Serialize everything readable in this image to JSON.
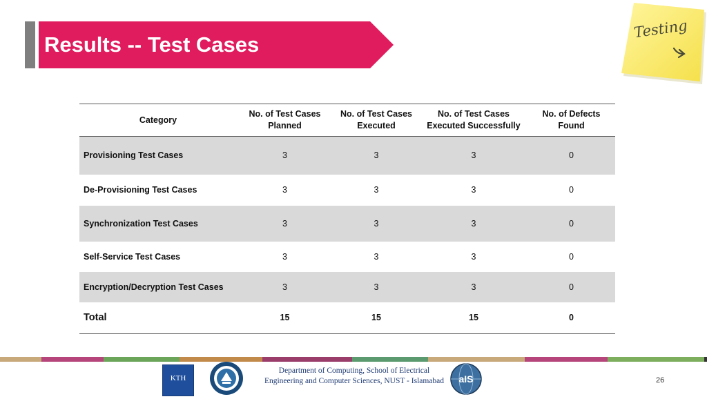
{
  "slide": {
    "title": "Results -- Test Cases",
    "page_number": "26",
    "colors": {
      "banner": "#e01b5e",
      "accent_bar": "#7f7f7f",
      "sticky_note": "#fff176",
      "row_shade": "#d9d9d9"
    }
  },
  "sticky_note": {
    "text": "Testing",
    "icon": "arrow-right-curved-icon"
  },
  "table": {
    "headers": [
      "Category",
      "No. of Test Cases Planned",
      "No. of Test Cases Executed",
      "No. of Test Cases Executed Successfully",
      "No. of Defects Found"
    ],
    "rows": [
      {
        "category": "Provisioning Test Cases",
        "planned": "3",
        "executed": "3",
        "successful": "3",
        "defects": "0"
      },
      {
        "category": "De-Provisioning Test Cases",
        "planned": "3",
        "executed": "3",
        "successful": "3",
        "defects": "0"
      },
      {
        "category": "Synchronization Test Cases",
        "planned": "3",
        "executed": "3",
        "successful": "3",
        "defects": "0"
      },
      {
        "category": "Self-Service Test Cases",
        "planned": "3",
        "executed": "3",
        "successful": "3",
        "defects": "0"
      },
      {
        "category": "Encryption/Decryption Test Cases",
        "planned": "3",
        "executed": "3",
        "successful": "3",
        "defects": "0"
      }
    ],
    "total": {
      "category": "Total",
      "planned": "15",
      "executed": "15",
      "successful": "15",
      "defects": "0"
    }
  },
  "footer": {
    "department": "Department of Computing, School of Electrical Engineering and Computer Sciences, NUST - Islamabad",
    "logos": {
      "kth": "KTH",
      "ais": "aIS"
    }
  }
}
